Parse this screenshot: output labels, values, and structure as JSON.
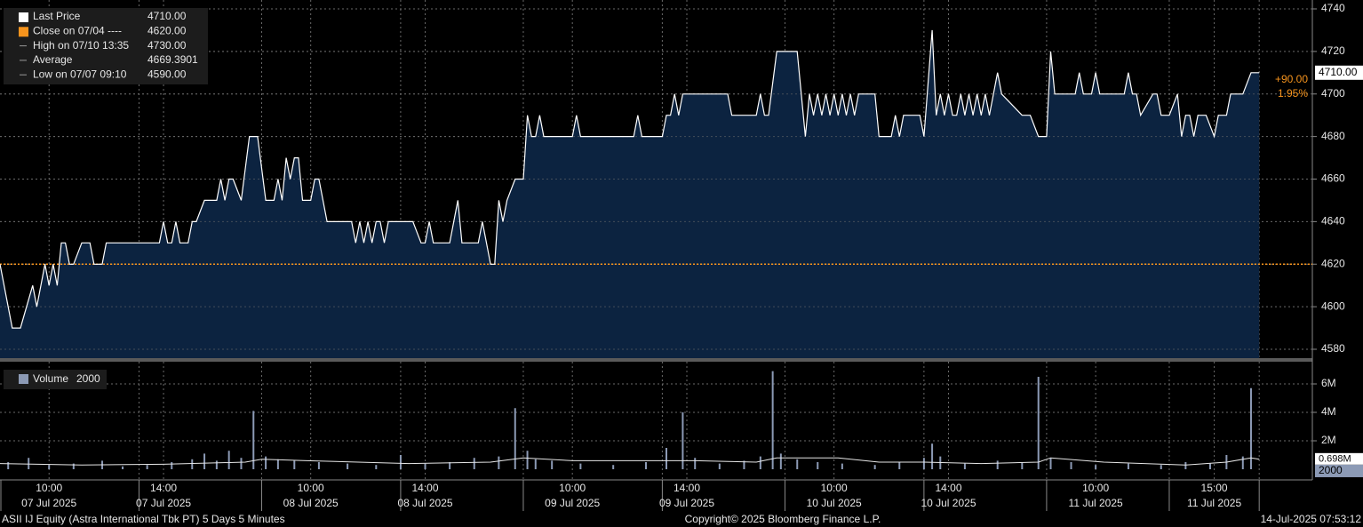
{
  "chart_data": [
    {
      "type": "area",
      "series": [
        {
          "name": "Last Price",
          "color": "#ffffff",
          "fill": "#0c2340",
          "x": [
            0,
            3,
            5,
            8,
            9,
            10,
            11,
            12,
            13,
            14,
            15,
            16,
            17,
            18,
            20,
            22,
            23,
            25,
            26,
            39,
            40,
            41,
            42,
            43,
            44,
            46,
            47,
            48,
            50,
            53,
            54,
            55,
            56,
            57,
            59,
            61,
            63,
            65,
            67,
            68,
            69,
            70,
            71,
            72,
            73,
            74,
            76,
            77,
            78,
            80,
            86,
            87,
            88,
            89,
            90,
            91,
            92,
            93,
            94,
            95,
            101,
            103,
            104,
            105,
            106,
            110,
            111,
            112,
            113,
            117,
            118,
            120,
            121,
            122,
            123,
            124,
            126,
            128,
            129,
            130,
            131,
            132,
            133,
            140,
            141,
            142,
            155,
            156,
            157,
            162,
            163,
            164,
            165,
            166,
            167,
            178,
            179,
            185,
            186,
            187,
            188,
            190,
            195,
            197,
            198,
            199,
            200,
            201,
            202,
            203,
            204,
            205,
            206,
            207,
            208,
            209,
            210,
            214,
            215,
            218,
            219,
            220,
            221,
            225,
            226,
            228,
            229,
            230,
            231,
            232,
            233,
            234,
            235,
            236,
            237,
            238,
            239,
            240,
            241,
            242,
            244,
            245,
            250,
            252,
            254,
            256,
            257,
            258,
            263,
            264,
            265,
            267,
            268,
            269,
            275,
            276,
            277,
            278,
            279,
            282,
            283,
            284,
            286,
            288,
            289,
            290,
            291,
            292,
            293,
            295,
            297,
            298,
            300,
            301,
            304,
            306,
            308
          ],
          "values": [
            4620,
            4590,
            4590,
            4610,
            4600,
            4610,
            4620,
            4610,
            4620,
            4610,
            4630,
            4630,
            4620,
            4620,
            4630,
            4630,
            4620,
            4620,
            4630,
            4630,
            4640,
            4630,
            4630,
            4640,
            4630,
            4630,
            4640,
            4640,
            4650,
            4650,
            4660,
            4650,
            4660,
            4660,
            4650,
            4680,
            4680,
            4650,
            4650,
            4660,
            4650,
            4670,
            4660,
            4670,
            4670,
            4650,
            4650,
            4660,
            4660,
            4640,
            4640,
            4630,
            4640,
            4630,
            4640,
            4630,
            4640,
            4640,
            4630,
            4640,
            4640,
            4630,
            4630,
            4640,
            4630,
            4630,
            4640,
            4650,
            4630,
            4630,
            4640,
            4620,
            4620,
            4650,
            4640,
            4650,
            4660,
            4660,
            4690,
            4680,
            4680,
            4690,
            4680,
            4680,
            4690,
            4680,
            4680,
            4690,
            4680,
            4680,
            4690,
            4690,
            4700,
            4690,
            4700,
            4700,
            4690,
            4690,
            4700,
            4690,
            4690,
            4720,
            4720,
            4680,
            4700,
            4690,
            4700,
            4690,
            4700,
            4690,
            4700,
            4690,
            4700,
            4690,
            4700,
            4690,
            4700,
            4700,
            4680,
            4680,
            4690,
            4680,
            4690,
            4690,
            4680,
            4730,
            4690,
            4700,
            4690,
            4700,
            4690,
            4690,
            4700,
            4690,
            4700,
            4690,
            4700,
            4690,
            4700,
            4690,
            4710,
            4700,
            4690,
            4690,
            4680,
            4680,
            4720,
            4700,
            4700,
            4710,
            4700,
            4700,
            4710,
            4700,
            4700,
            4710,
            4700,
            4700,
            4690,
            4700,
            4700,
            4690,
            4690,
            4700,
            4680,
            4690,
            4690,
            4680,
            4690,
            4690,
            4680,
            4690,
            4690,
            4700,
            4700,
            4710,
            4710
          ]
        }
      ],
      "legend": [
        {
          "label": "Last Price",
          "text": "4710.00",
          "color": "#ffffff"
        },
        {
          "label": "Close on 07/04 ----",
          "text": "4620.00",
          "color": "#f7941d"
        },
        {
          "label": "High on 07/10 13:35",
          "text": "4730.00"
        },
        {
          "label": "Average",
          "text": "4669.3901"
        },
        {
          "label": "Low on 07/07 09:10",
          "text": "4590.00"
        }
      ],
      "reference_line": {
        "value": 4620,
        "color": "#f7941d"
      },
      "last_label": {
        "value": 4710,
        "label": "4710.00"
      },
      "change_labels": [
        "+90.00",
        "1.95%"
      ],
      "xlim": [
        0,
        321
      ],
      "xticks": [
        {
          "value": 12,
          "label": "10:00"
        },
        {
          "value": 40,
          "label": "14:00"
        },
        {
          "value": 76,
          "label": "10:00"
        },
        {
          "value": 104,
          "label": "14:00"
        },
        {
          "value": 140,
          "label": "10:00"
        },
        {
          "value": 168,
          "label": "14:00"
        },
        {
          "value": 204,
          "label": "10:00"
        },
        {
          "value": 232,
          "label": "14:00"
        },
        {
          "value": 268,
          "label": "10:00"
        },
        {
          "value": 297,
          "label": "15:00"
        }
      ],
      "xtick_dates": [
        "07 Jul 2025",
        "07 Jul 2025",
        "08 Jul 2025",
        "08 Jul 2025",
        "09 Jul 2025",
        "09 Jul 2025",
        "10 Jul 2025",
        "10 Jul 2025",
        "11 Jul 2025",
        "11 Jul 2025"
      ],
      "x_separators": [
        34,
        64,
        98,
        128,
        162,
        192,
        226,
        256,
        286,
        308
      ],
      "ylim": [
        4580,
        4740
      ],
      "yticks": [
        4580,
        4600,
        4620,
        4640,
        4660,
        4680,
        4700,
        4720,
        4740
      ],
      "grid": true
    },
    {
      "type": "bar",
      "series": [
        {
          "name": "Volume",
          "color": "#8c9ab5",
          "x": [
            2,
            7,
            12,
            18,
            25,
            30,
            36,
            42,
            47,
            50,
            53,
            56,
            59,
            62,
            65,
            68,
            72,
            78,
            85,
            92,
            98,
            104,
            110,
            116,
            122,
            126,
            129,
            131,
            135,
            142,
            150,
            158,
            163,
            167,
            170,
            176,
            182,
            186,
            189,
            191,
            195,
            200,
            206,
            214,
            220,
            226,
            228,
            230,
            236,
            244,
            250,
            254,
            257,
            262,
            268,
            276,
            284,
            290,
            296,
            300,
            304,
            306,
            308
          ],
          "values": [
            500000,
            800000,
            300000,
            400000,
            600000,
            200000,
            300000,
            500000,
            700000,
            1100000,
            600000,
            1300000,
            800000,
            4100000,
            900000,
            700000,
            600000,
            500000,
            400000,
            300000,
            1000000,
            400000,
            500000,
            800000,
            900000,
            4300000,
            1300000,
            700000,
            600000,
            400000,
            300000,
            500000,
            1500000,
            4000000,
            800000,
            400000,
            600000,
            900000,
            6900000,
            1100000,
            700000,
            500000,
            400000,
            300000,
            500000,
            800000,
            1800000,
            900000,
            400000,
            600000,
            500000,
            6500000,
            800000,
            500000,
            300000,
            400000,
            300000,
            500000,
            400000,
            1000000,
            900000,
            5700000,
            2000
          ]
        },
        {
          "color": "#e6e6e6",
          "x": [
            0,
            20,
            40,
            60,
            64,
            75,
            100,
            120,
            128,
            140,
            160,
            170,
            185,
            190,
            205,
            215,
            226,
            240,
            254,
            257,
            270,
            290,
            300,
            306,
            308
          ],
          "values": [
            400000,
            300000,
            350000,
            500000,
            700000,
            600000,
            400000,
            500000,
            800000,
            600000,
            600000,
            600000,
            500000,
            800000,
            800000,
            500000,
            500000,
            400000,
            500000,
            800000,
            500000,
            300000,
            500000,
            800000,
            698000
          ]
        }
      ],
      "last_label": {
        "value": 2000,
        "label": "2000"
      },
      "ma_label": {
        "value": 698000,
        "label": "0.698M"
      },
      "xlim": [
        0,
        321
      ],
      "ylim": [
        0,
        7000000
      ],
      "yticks": [
        {
          "value": 2000000,
          "label": "2M"
        },
        {
          "value": 4000000,
          "label": "4M"
        },
        {
          "value": 6000000,
          "label": "6M"
        }
      ],
      "grid": true
    }
  ],
  "footer": {
    "left": "ASII IJ Equity (Astra International Tbk PT) 5 Days 5 Minutes",
    "center": "Copyright© 2025 Bloomberg Finance L.P.",
    "right": "14-Jul-2025 07:53:12"
  }
}
